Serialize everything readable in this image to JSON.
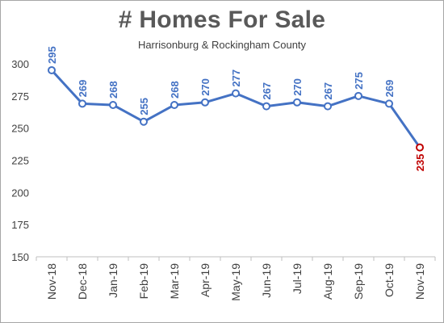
{
  "chart_data": {
    "type": "line",
    "title": "# Homes For Sale",
    "subtitle": "Harrisonburg & Rockingham County",
    "categories": [
      "Nov-18",
      "Dec-18",
      "Jan-19",
      "Feb-19",
      "Mar-19",
      "Apr-19",
      "May-19",
      "Jun-19",
      "Jul-19",
      "Aug-19",
      "Sep-19",
      "Oct-19",
      "Nov-19"
    ],
    "values": [
      295,
      269,
      268,
      255,
      268,
      270,
      277,
      267,
      270,
      267,
      275,
      269,
      235
    ],
    "ylim": [
      150,
      300
    ],
    "yticks": [
      150,
      175,
      200,
      225,
      250,
      275,
      300
    ],
    "grid": false,
    "colors": {
      "line": "#4472c4",
      "label": "#4472c4",
      "highlight": "#c00000",
      "axis_text": "#404040"
    }
  }
}
